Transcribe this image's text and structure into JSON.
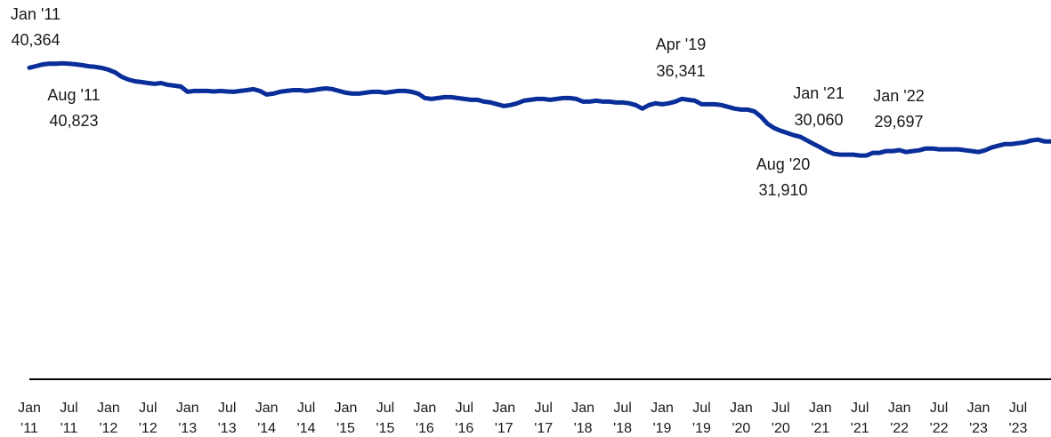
{
  "chart_data": {
    "type": "line",
    "categories": [
      "Jan '11",
      "Feb '11",
      "Mar '11",
      "Apr '11",
      "May '11",
      "Jun '11",
      "Jul '11",
      "Aug '11",
      "Sep '11",
      "Oct '11",
      "Nov '11",
      "Dec '11",
      "Jan '12",
      "Feb '12",
      "Mar '12",
      "Apr '12",
      "May '12",
      "Jun '12",
      "Jul '12",
      "Aug '12",
      "Sep '12",
      "Oct '12",
      "Nov '12",
      "Dec '12",
      "Jan '13",
      "Feb '13",
      "Mar '13",
      "Apr '13",
      "May '13",
      "Jun '13",
      "Jul '13",
      "Aug '13",
      "Sep '13",
      "Oct '13",
      "Nov '13",
      "Dec '13",
      "Jan '14",
      "Feb '14",
      "Mar '14",
      "Apr '14",
      "May '14",
      "Jun '14",
      "Jul '14",
      "Aug '14",
      "Sep '14",
      "Oct '14",
      "Nov '14",
      "Dec '14",
      "Jan '15",
      "Feb '15",
      "Mar '15",
      "Apr '15",
      "May '15",
      "Jun '15",
      "Jul '15",
      "Aug '15",
      "Sep '15",
      "Oct '15",
      "Nov '15",
      "Dec '15",
      "Jan '16",
      "Feb '16",
      "Mar '16",
      "Apr '16",
      "May '16",
      "Jun '16",
      "Jul '16",
      "Aug '16",
      "Sep '16",
      "Oct '16",
      "Nov '16",
      "Dec '16",
      "Jan '17",
      "Feb '17",
      "Mar '17",
      "Apr '17",
      "May '17",
      "Jun '17",
      "Jul '17",
      "Aug '17",
      "Sep '17",
      "Oct '17",
      "Nov '17",
      "Dec '17",
      "Jan '18",
      "Feb '18",
      "Mar '18",
      "Apr '18",
      "May '18",
      "Jun '18",
      "Jul '18",
      "Aug '18",
      "Sep '18",
      "Oct '18",
      "Nov '18",
      "Dec '18",
      "Jan '19",
      "Feb '19",
      "Mar '19",
      "Apr '19",
      "May '19",
      "Jun '19",
      "Jul '19",
      "Aug '19",
      "Sep '19",
      "Oct '19",
      "Nov '19",
      "Dec '19",
      "Jan '20",
      "Feb '20",
      "Mar '20",
      "Apr '20",
      "May '20",
      "Jun '20",
      "Jul '20",
      "Aug '20",
      "Sep '20",
      "Oct '20",
      "Nov '20",
      "Dec '20",
      "Jan '21",
      "Feb '21",
      "Mar '21",
      "Apr '21",
      "May '21",
      "Jun '21",
      "Jul '21",
      "Aug '21",
      "Sep '21",
      "Oct '21",
      "Nov '21",
      "Dec '21",
      "Jan '22",
      "Feb '22",
      "Mar '22",
      "Apr '22",
      "May '22",
      "Jun '22",
      "Jul '22",
      "Aug '22",
      "Sep '22",
      "Oct '22",
      "Nov '22",
      "Dec '22",
      "Jan '23",
      "Feb '23",
      "Mar '23",
      "Apr '23",
      "May '23",
      "Jun '23",
      "Jul '23",
      "Aug '23",
      "Sep '23",
      "Oct '23",
      "Nov '23",
      "Dec '23"
    ],
    "values": [
      40364,
      40570,
      40800,
      40910,
      40900,
      40950,
      40900,
      40823,
      40700,
      40560,
      40480,
      40350,
      40110,
      39770,
      39200,
      38850,
      38620,
      38510,
      38390,
      38280,
      38390,
      38160,
      38050,
      37930,
      37250,
      37360,
      37360,
      37360,
      37300,
      37360,
      37300,
      37250,
      37360,
      37470,
      37590,
      37360,
      36900,
      37020,
      37250,
      37360,
      37470,
      37470,
      37360,
      37470,
      37590,
      37700,
      37590,
      37360,
      37130,
      37020,
      37020,
      37130,
      37250,
      37250,
      37130,
      37250,
      37360,
      37360,
      37250,
      37020,
      36440,
      36330,
      36440,
      36560,
      36560,
      36440,
      36330,
      36210,
      36210,
      35980,
      35870,
      35640,
      35410,
      35530,
      35760,
      36100,
      36210,
      36330,
      36330,
      36210,
      36330,
      36440,
      36440,
      36330,
      35980,
      35980,
      36100,
      35980,
      35980,
      35870,
      35870,
      35760,
      35530,
      35070,
      35530,
      35760,
      35640,
      35760,
      35980,
      36341,
      36210,
      36100,
      35640,
      35640,
      35640,
      35530,
      35300,
      35070,
      34950,
      34950,
      34720,
      34040,
      33120,
      32550,
      32200,
      31910,
      31630,
      31400,
      30940,
      30480,
      30060,
      29570,
      29220,
      29110,
      29110,
      29110,
      29000,
      29000,
      29340,
      29340,
      29570,
      29570,
      29697,
      29450,
      29570,
      29680,
      29910,
      29910,
      29800,
      29800,
      29800,
      29800,
      29680,
      29570,
      29450,
      29680,
      30030,
      30260,
      30480,
      30480,
      30600,
      30710,
      30940,
      31060,
      30830,
      30830
    ],
    "color": "#0a2e99",
    "ylim": [
      0,
      48000
    ],
    "xticks": [
      "Jan '11",
      "Jul '11",
      "Jan '12",
      "Jul '12",
      "Jan '13",
      "Jul '13",
      "Jan '14",
      "Jul '14",
      "Jan '15",
      "Jul '15",
      "Jan '16",
      "Jul '16",
      "Jan '17",
      "Jul '17",
      "Jan '18",
      "Jul '18",
      "Jan '19",
      "Jul '19",
      "Jan '20",
      "Jul '20",
      "Jan '21",
      "Jul '21",
      "Jan '22",
      "Jul '22",
      "Jan '23",
      "Jul '23"
    ],
    "annotations": [
      {
        "x": "Jan '11",
        "label": "40,364"
      },
      {
        "x": "Aug '11",
        "label": "40,823"
      },
      {
        "x": "Apr '19",
        "label": "36,341"
      },
      {
        "x": "Aug '20",
        "label": "31,910"
      },
      {
        "x": "Jan '21",
        "label": "30,060"
      },
      {
        "x": "Jan '22",
        "label": "29,697"
      }
    ]
  }
}
